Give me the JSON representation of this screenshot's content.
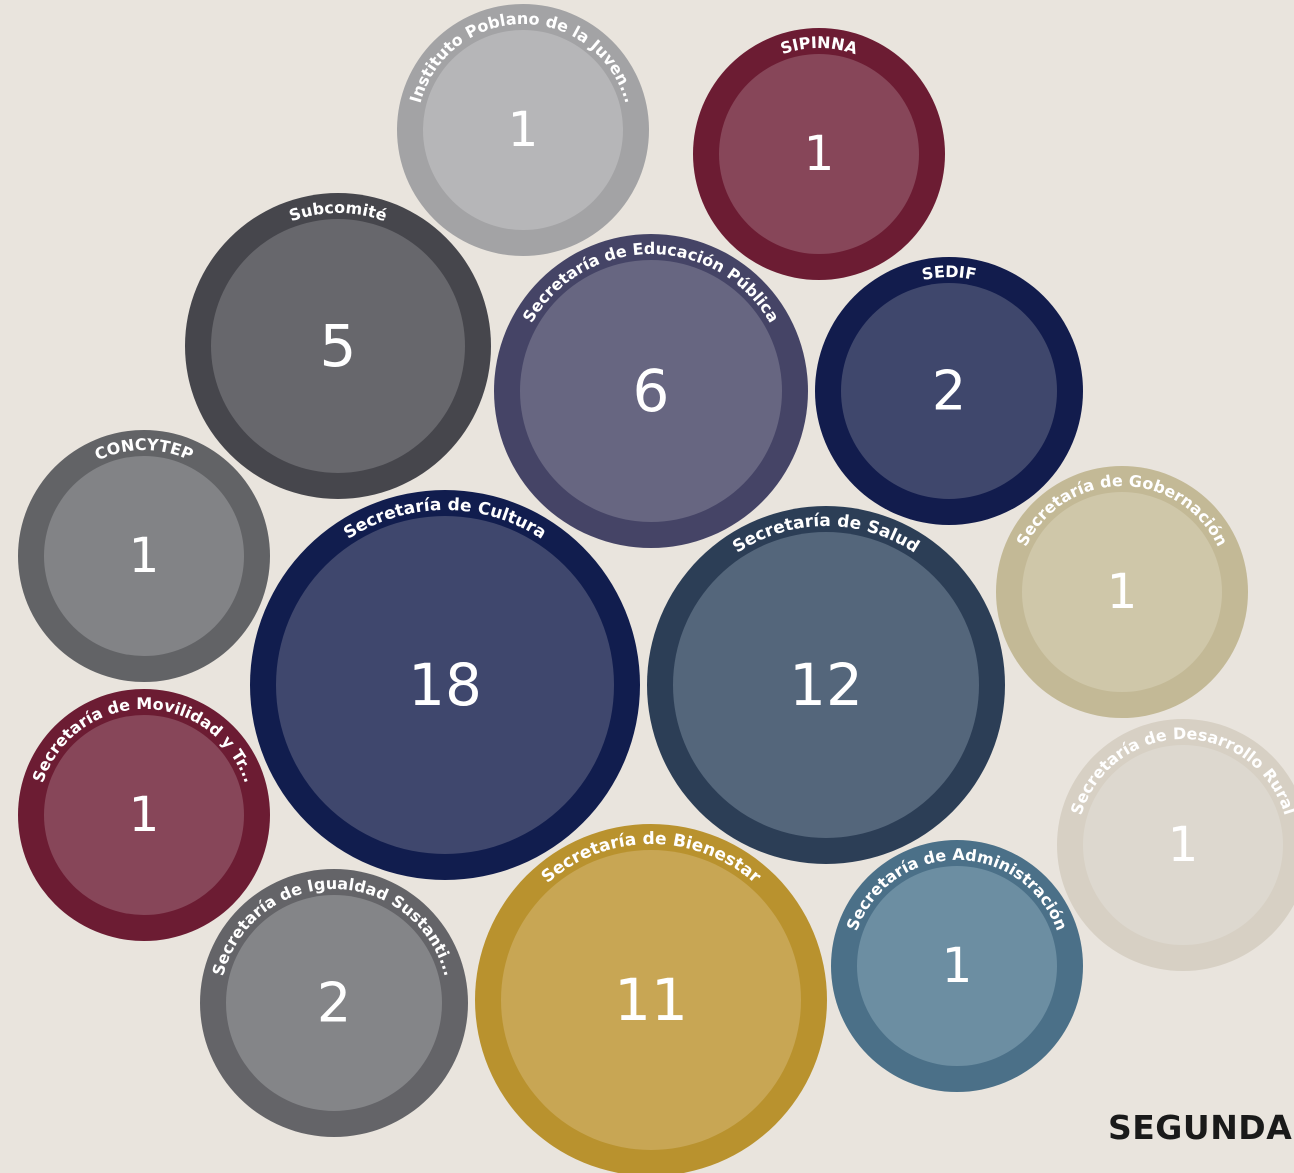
{
  "footer_label": "SEGUNDA",
  "chart_data": {
    "type": "bubble",
    "title": "",
    "xlabel": "",
    "ylabel": "",
    "legend": "none",
    "grid": false,
    "series": [
      {
        "name": "Instituto Poblano de la Juven...",
        "value": 1,
        "ring": "#a3a3a5",
        "fill": "#b6b6b8"
      },
      {
        "name": "SIPINNA",
        "value": 1,
        "ring": "#6c1c33",
        "fill": "#874659"
      },
      {
        "name": "Subcomité",
        "value": 5,
        "ring": "#46464c",
        "fill": "#67676c"
      },
      {
        "name": "Secretaría de Educación Pública",
        "value": 6,
        "ring": "#454466",
        "fill": "#676681"
      },
      {
        "name": "SEDIF",
        "value": 2,
        "ring": "#121c4d",
        "fill": "#3f476c"
      },
      {
        "name": "CONCYTEP",
        "value": 1,
        "ring": "#626366",
        "fill": "#828386"
      },
      {
        "name": "Secretaría de Cultura",
        "value": 18,
        "ring": "#111d4e",
        "fill": "#3f476d"
      },
      {
        "name": "Secretaría de Salud",
        "value": 12,
        "ring": "#2c3e56",
        "fill": "#54667b"
      },
      {
        "name": "Secretaría de Gobernación",
        "value": 1,
        "ring": "#c3b996",
        "fill": "#cfc7a9"
      },
      {
        "name": "Secretaría de Movilidad y Tr...",
        "value": 1,
        "ring": "#6c1c33",
        "fill": "#874659"
      },
      {
        "name": "Secretaría de Desarrollo Rural",
        "value": 1,
        "ring": "#d7d0c4",
        "fill": "#ddd8cf"
      },
      {
        "name": "Secretaría de Administración",
        "value": 1,
        "ring": "#4b7088",
        "fill": "#6c8ea2"
      },
      {
        "name": "Secretaría de Igualdad Sustanti...",
        "value": 2,
        "ring": "#646468",
        "fill": "#848588"
      },
      {
        "name": "Secretaría de Bienestar",
        "value": 11,
        "ring": "#b9922e",
        "fill": "#c8a654"
      }
    ]
  }
}
